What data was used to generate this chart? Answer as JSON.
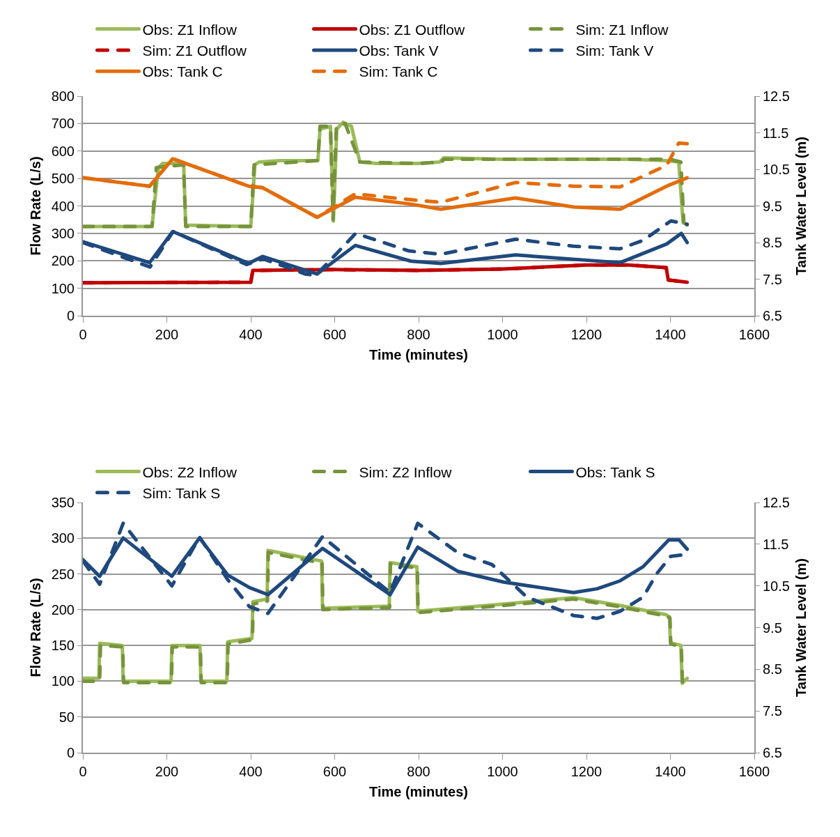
{
  "chart_data": [
    {
      "type": "line",
      "xlabel": "Time (minutes)",
      "ylabel": "Flow Rate (L/s)",
      "y2label": "Tank Water Level (m)",
      "xlim": [
        0,
        1600
      ],
      "xticks": [
        0,
        200,
        400,
        600,
        800,
        1000,
        1200,
        1400,
        1600
      ],
      "ylim": [
        0,
        800
      ],
      "yticks": [
        0,
        100,
        200,
        300,
        400,
        500,
        600,
        700,
        800
      ],
      "y2lim": [
        6.5,
        12.5
      ],
      "y2ticks": [
        6.5,
        7.5,
        8.5,
        9.5,
        10.5,
        11.5,
        12.5
      ],
      "grid": "y",
      "legend": "top",
      "line_style": "solid",
      "series": [
        {
          "name": "Obs: Z1 Inflow",
          "color": "#9bbb59",
          "x": [
            0,
            160,
            165,
            180,
            190,
            240,
            245,
            400,
            410,
            420,
            470,
            560,
            565,
            590,
            597,
            605,
            620,
            640,
            660,
            700,
            800,
            850,
            860,
            1000,
            1100,
            1200,
            1300,
            1390,
            1420,
            1430,
            1440
          ],
          "values": [
            325,
            325,
            330,
            540,
            555,
            555,
            330,
            325,
            550,
            560,
            565,
            565,
            680,
            690,
            345,
            680,
            705,
            690,
            560,
            555,
            555,
            560,
            575,
            570,
            570,
            570,
            570,
            565,
            560,
            340,
            330
          ]
        },
        {
          "name": "Obs: Z1 Outflow",
          "color": "#c00000",
          "x": [
            0,
            400,
            405,
            600,
            800,
            1000,
            1200,
            1300,
            1390,
            1395,
            1440
          ],
          "values": [
            120,
            122,
            165,
            168,
            165,
            170,
            185,
            185,
            175,
            130,
            122
          ]
        },
        {
          "name": "Sim: Z1 Inflow",
          "color": "#77933c",
          "line_style": "dashed",
          "x": [
            0,
            165,
            175,
            240,
            245,
            400,
            408,
            560,
            565,
            590,
            596,
            604,
            625,
            660,
            800,
            855,
            860,
            1400,
            1425,
            1432
          ],
          "values": [
            325,
            325,
            540,
            550,
            325,
            325,
            550,
            565,
            690,
            690,
            350,
            690,
            700,
            560,
            555,
            560,
            570,
            570,
            560,
            340
          ]
        },
        {
          "name": "Sim: Z1 Outflow",
          "color": "#c00000",
          "line_style": "dashed",
          "x": [
            0,
            400,
            405,
            600,
            800,
            1000,
            1200,
            1300,
            1390,
            1395,
            1440
          ],
          "values": [
            120,
            122,
            165,
            168,
            165,
            170,
            185,
            185,
            175,
            130,
            122
          ]
        },
        {
          "name": "Obs: Tank V",
          "color": "#1f497d",
          "axis": "y2",
          "x": [
            0,
            159,
            214,
            395,
            428,
            558,
            649,
            782,
            853,
            1031,
            1280,
            1391,
            1426,
            1440
          ],
          "values": [
            8.52,
            7.95,
            8.8,
            7.93,
            8.12,
            7.64,
            8.42,
            7.99,
            7.93,
            8.16,
            7.95,
            8.46,
            8.75,
            8.5
          ]
        },
        {
          "name": "Sim: Tank V",
          "color": "#1f497d",
          "axis": "y2",
          "line_style": "dashed",
          "x": [
            0,
            160,
            215,
            390,
            430,
            480,
            530,
            555,
            650,
            777,
            853,
            1031,
            1169,
            1280,
            1335,
            1401,
            1440
          ],
          "values": [
            8.5,
            7.83,
            8.8,
            7.9,
            8.05,
            7.85,
            7.64,
            7.6,
            8.75,
            8.27,
            8.18,
            8.59,
            8.4,
            8.33,
            8.56,
            9.09,
            9.0
          ]
        },
        {
          "name": "Obs: Tank C",
          "color": "#e46c0a",
          "axis": "y2",
          "x": [
            0,
            159,
            214,
            395,
            428,
            558,
            649,
            782,
            853,
            1031,
            1169,
            1280,
            1391,
            1440
          ],
          "values": [
            10.27,
            10.04,
            10.79,
            10.04,
            10.0,
            9.19,
            9.74,
            9.55,
            9.41,
            9.72,
            9.47,
            9.41,
            10.04,
            10.27
          ]
        },
        {
          "name": "Sim: Tank C",
          "color": "#e46c0a",
          "axis": "y2",
          "line_style": "dashed",
          "x": [
            0,
            159,
            214,
            395,
            428,
            558,
            649,
            782,
            853,
            1031,
            1169,
            1280,
            1391,
            1420,
            1440
          ],
          "values": [
            10.27,
            10.04,
            10.79,
            10.04,
            10.0,
            9.19,
            9.83,
            9.67,
            9.6,
            10.14,
            10.04,
            10.02,
            10.61,
            11.22,
            11.2
          ]
        }
      ]
    },
    {
      "type": "line",
      "xlabel": "Time (minutes)",
      "ylabel": "Flow Rate (L/s)",
      "y2label": "Tank Water Level (m)",
      "xlim": [
        0,
        1600
      ],
      "xticks": [
        0,
        200,
        400,
        600,
        800,
        1000,
        1200,
        1400,
        1600
      ],
      "ylim": [
        0,
        350
      ],
      "yticks": [
        0,
        50,
        100,
        150,
        200,
        250,
        300,
        350
      ],
      "y2lim": [
        6.5,
        12.5
      ],
      "y2ticks": [
        6.5,
        7.5,
        8.5,
        9.5,
        10.5,
        11.5,
        12.5
      ],
      "grid": "y",
      "legend": "top",
      "line_style": "solid",
      "series": [
        {
          "name": "Obs: Z2 Inflow",
          "color": "#9bbb59",
          "x": [
            0,
            38,
            40,
            94,
            96,
            210,
            212,
            279,
            281,
            343,
            345,
            403,
            405,
            439,
            441,
            569,
            571,
            730,
            732,
            796,
            798,
            1003,
            1169,
            1280,
            1390,
            1398,
            1400,
            1425,
            1428,
            1440
          ],
          "values": [
            104,
            104,
            153,
            150,
            100,
            100,
            150,
            150,
            100,
            100,
            155,
            160,
            211,
            215,
            283,
            268,
            202,
            205,
            266,
            260,
            198,
            208,
            217,
            206,
            193,
            190,
            154,
            150,
            97,
            104
          ]
        },
        {
          "name": "Sim: Z2 Inflow",
          "color": "#77933c",
          "line_style": "dashed",
          "x": [
            0,
            40,
            42,
            95,
            97,
            211,
            213,
            280,
            282,
            344,
            346,
            404,
            406,
            440,
            442,
            570,
            572,
            731,
            733,
            797,
            799,
            1003,
            1169,
            1280,
            1390,
            1399,
            1401,
            1426,
            1429,
            1440
          ],
          "values": [
            100,
            100,
            150,
            148,
            98,
            98,
            148,
            148,
            98,
            98,
            152,
            158,
            208,
            212,
            280,
            265,
            200,
            203,
            264,
            258,
            196,
            206,
            215,
            204,
            191,
            188,
            152,
            148,
            95,
            102
          ]
        },
        {
          "name": "Obs: Tank S",
          "color": "#1f497d",
          "axis": "y2",
          "x": [
            0,
            40,
            96,
            212,
            278,
            345,
            397,
            441,
            571,
            732,
            798,
            893,
            1003,
            1169,
            1225,
            1280,
            1335,
            1396,
            1421,
            1440
          ],
          "values": [
            11.13,
            10.73,
            11.65,
            10.73,
            11.65,
            10.76,
            10.46,
            10.29,
            11.4,
            10.29,
            11.43,
            10.85,
            10.59,
            10.34,
            10.43,
            10.62,
            10.96,
            11.6,
            11.6,
            11.38
          ]
        },
        {
          "name": "Sim: Tank S",
          "color": "#1f497d",
          "axis": "y2",
          "line_style": "dashed",
          "x": [
            0,
            40,
            96,
            212,
            278,
            345,
            397,
            441,
            571,
            732,
            798,
            893,
            975,
            1058,
            1169,
            1225,
            1280,
            1335,
            1368,
            1401,
            1426
          ],
          "values": [
            11.1,
            10.54,
            12.0,
            10.5,
            11.67,
            10.65,
            10.0,
            9.84,
            11.68,
            10.34,
            12.0,
            11.3,
            11.01,
            10.23,
            9.79,
            9.72,
            9.89,
            10.23,
            10.8,
            11.21,
            11.24
          ]
        }
      ]
    }
  ]
}
